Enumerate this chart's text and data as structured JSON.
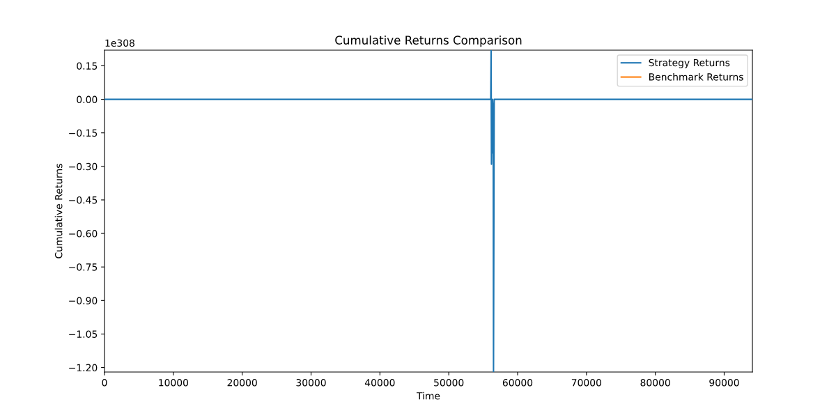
{
  "chart_data": {
    "type": "line",
    "title": "Cumulative Returns Comparison",
    "xlabel": "Time",
    "ylabel": "Cumulative Returns",
    "annotations": [
      "1e308"
    ],
    "series": [
      {
        "name": "Strategy Returns",
        "color": "#1f77b4",
        "x": [
          0,
          56100,
          56150,
          56200,
          56250,
          56300,
          56350,
          56450,
          56500,
          56600,
          94100
        ],
        "values": [
          0,
          0,
          0.22,
          -0.29,
          -0.13,
          -0.24,
          0,
          -0.05,
          -1.22,
          0,
          0
        ]
      },
      {
        "name": "Benchmark Returns",
        "color": "#ff7f0e"
      }
    ],
    "xlim": [
      0,
      94100
    ],
    "ylim": [
      -1.22,
      0.22
    ],
    "xticks": [
      0,
      10000,
      20000,
      30000,
      40000,
      50000,
      60000,
      70000,
      80000,
      90000
    ],
    "yticks": [
      {
        "value": 0.15,
        "label": "0.15"
      },
      {
        "value": 0,
        "label": "0.00"
      },
      {
        "value": -0.15,
        "label": "−0.15"
      },
      {
        "value": -0.3,
        "label": "−0.30"
      },
      {
        "value": -0.45,
        "label": "−0.45"
      },
      {
        "value": -0.6,
        "label": "−0.60"
      },
      {
        "value": -0.75,
        "label": "−0.75"
      },
      {
        "value": -0.9,
        "label": "−0.90"
      },
      {
        "value": -1.05,
        "label": "−1.05"
      },
      {
        "value": -1.2,
        "label": "−1.20"
      }
    ],
    "legend": "top right",
    "grid": false,
    "marker": "none",
    "line_style": "solid"
  }
}
